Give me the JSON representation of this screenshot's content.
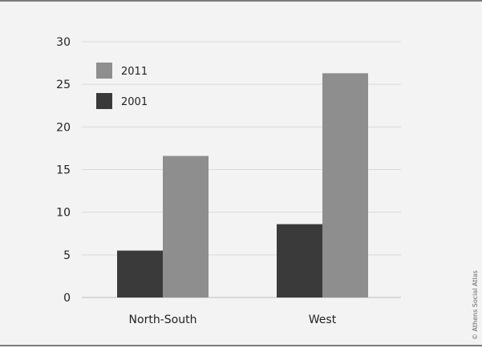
{
  "chart_data": {
    "type": "bar",
    "categories": [
      "North-South",
      "West"
    ],
    "series": [
      {
        "name": "2001",
        "values": [
          5.5,
          8.6
        ],
        "color": "#3a3a3a"
      },
      {
        "name": "2011",
        "values": [
          16.6,
          26.3
        ],
        "color": "#8e8e8e"
      }
    ],
    "ylim": [
      0,
      30
    ],
    "yticks": [
      "0",
      "5",
      "10",
      "15",
      "20",
      "25",
      "30"
    ],
    "grid": true,
    "legend_placement": "top-left",
    "legend_order": [
      "2011",
      "2001"
    ],
    "credit": "© Athens Social Atlas"
  }
}
